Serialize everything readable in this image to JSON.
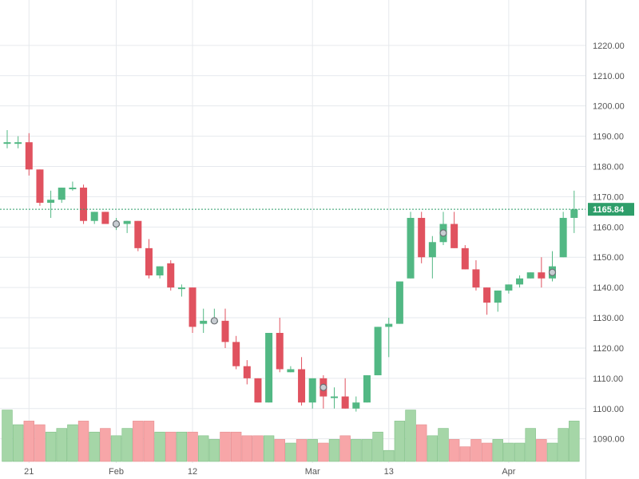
{
  "chart_data": {
    "type": "candlestick",
    "grid": true,
    "y_axis_position": "right",
    "ylim": [
      1082,
      1235
    ],
    "y_ticks": [
      "1090.00",
      "1100.00",
      "1110.00",
      "1120.00",
      "1130.00",
      "1140.00",
      "1150.00",
      "1160.00",
      "1170.00",
      "1180.00",
      "1190.00",
      "1200.00",
      "1210.00",
      "1220.00"
    ],
    "x_ticks": [
      {
        "label": "21",
        "index": 2
      },
      {
        "label": "Feb",
        "index": 10
      },
      {
        "label": "12",
        "index": 17
      },
      {
        "label": "Mar",
        "index": 28
      },
      {
        "label": "13",
        "index": 35
      },
      {
        "label": "Apr",
        "index": 46
      }
    ],
    "last_price": "1165.84",
    "last_price_value": 1165.84,
    "colors": {
      "up": "#52b884",
      "down": "#e0525f",
      "volume_up": "#a5d6a7",
      "volume_down": "#f7a6a8",
      "grid": "#e6e9ed",
      "axis_text": "#555555",
      "price_line": "#2e9e6a",
      "price_tag": "#2e9e6a"
    },
    "candles": [
      {
        "o": 1188,
        "h": 1192,
        "l": 1186,
        "c": 1188,
        "v": 14
      },
      {
        "o": 1188,
        "h": 1190,
        "l": 1186,
        "c": 1188,
        "v": 10
      },
      {
        "o": 1188,
        "h": 1191,
        "l": 1177,
        "c": 1179,
        "v": 11
      },
      {
        "o": 1179,
        "h": 1179,
        "l": 1167,
        "c": 1168,
        "v": 10
      },
      {
        "o": 1168,
        "h": 1172,
        "l": 1163,
        "c": 1169,
        "v": 8
      },
      {
        "o": 1169,
        "h": 1173,
        "l": 1168,
        "c": 1173,
        "v": 9
      },
      {
        "o": 1173,
        "h": 1175,
        "l": 1172,
        "c": 1173,
        "v": 10
      },
      {
        "o": 1173,
        "h": 1174,
        "l": 1161,
        "c": 1162,
        "v": 11
      },
      {
        "o": 1162,
        "h": 1165,
        "l": 1161,
        "c": 1165,
        "v": 8
      },
      {
        "o": 1165,
        "h": 1165,
        "l": 1161,
        "c": 1161,
        "v": 9
      },
      {
        "o": 1161,
        "h": 1163,
        "l": 1159,
        "c": 1161,
        "v": 7,
        "event": true
      },
      {
        "o": 1161,
        "h": 1162,
        "l": 1158,
        "c": 1162,
        "v": 9
      },
      {
        "o": 1162,
        "h": 1162,
        "l": 1152,
        "c": 1153,
        "v": 11
      },
      {
        "o": 1153,
        "h": 1156,
        "l": 1143,
        "c": 1144,
        "v": 11
      },
      {
        "o": 1144,
        "h": 1147,
        "l": 1143,
        "c": 1147,
        "v": 8
      },
      {
        "o": 1148,
        "h": 1149,
        "l": 1139,
        "c": 1140,
        "v": 8
      },
      {
        "o": 1140,
        "h": 1141,
        "l": 1137,
        "c": 1140,
        "v": 8
      },
      {
        "o": 1140,
        "h": 1140,
        "l": 1125,
        "c": 1127,
        "v": 8
      },
      {
        "o": 1128,
        "h": 1133,
        "l": 1125,
        "c": 1129,
        "v": 7
      },
      {
        "o": 1129,
        "h": 1133,
        "l": 1128,
        "c": 1129,
        "v": 6,
        "event": true
      },
      {
        "o": 1129,
        "h": 1133,
        "l": 1120,
        "c": 1122,
        "v": 8
      },
      {
        "o": 1122,
        "h": 1124,
        "l": 1113,
        "c": 1114,
        "v": 8
      },
      {
        "o": 1114,
        "h": 1116,
        "l": 1108,
        "c": 1110,
        "v": 7
      },
      {
        "o": 1110,
        "h": 1110,
        "l": 1102,
        "c": 1102,
        "v": 7
      },
      {
        "o": 1102,
        "h": 1125,
        "l": 1102,
        "c": 1125,
        "v": 7
      },
      {
        "o": 1125,
        "h": 1130,
        "l": 1112,
        "c": 1113,
        "v": 6
      },
      {
        "o": 1112,
        "h": 1114,
        "l": 1112,
        "c": 1113,
        "v": 5
      },
      {
        "o": 1113,
        "h": 1117,
        "l": 1101,
        "c": 1102,
        "v": 6
      },
      {
        "o": 1102,
        "h": 1110,
        "l": 1100,
        "c": 1110,
        "v": 6
      },
      {
        "o": 1110,
        "h": 1111,
        "l": 1100,
        "c": 1104,
        "v": 5,
        "event": true
      },
      {
        "o": 1104,
        "h": 1107,
        "l": 1100,
        "c": 1104,
        "v": 6
      },
      {
        "o": 1104,
        "h": 1110,
        "l": 1100,
        "c": 1100,
        "v": 7
      },
      {
        "o": 1100,
        "h": 1104,
        "l": 1099,
        "c": 1102,
        "v": 6
      },
      {
        "o": 1102,
        "h": 1111,
        "l": 1102,
        "c": 1111,
        "v": 6
      },
      {
        "o": 1111,
        "h": 1127,
        "l": 1111,
        "c": 1127,
        "v": 8
      },
      {
        "o": 1127,
        "h": 1130,
        "l": 1117,
        "c": 1128,
        "v": 3
      },
      {
        "o": 1128,
        "h": 1142,
        "l": 1128,
        "c": 1142,
        "v": 11
      },
      {
        "o": 1143,
        "h": 1165,
        "l": 1143,
        "c": 1163,
        "v": 14
      },
      {
        "o": 1163,
        "h": 1165,
        "l": 1148,
        "c": 1150,
        "v": 10
      },
      {
        "o": 1150,
        "h": 1157,
        "l": 1143,
        "c": 1155,
        "v": 7
      },
      {
        "o": 1155,
        "h": 1165,
        "l": 1154,
        "c": 1161,
        "v": 9,
        "event": true
      },
      {
        "o": 1161,
        "h": 1165,
        "l": 1153,
        "c": 1153,
        "v": 6
      },
      {
        "o": 1153,
        "h": 1154,
        "l": 1146,
        "c": 1146,
        "v": 4
      },
      {
        "o": 1146,
        "h": 1149,
        "l": 1139,
        "c": 1140,
        "v": 6
      },
      {
        "o": 1140,
        "h": 1140,
        "l": 1131,
        "c": 1135,
        "v": 5
      },
      {
        "o": 1135,
        "h": 1139,
        "l": 1132,
        "c": 1139,
        "v": 6
      },
      {
        "o": 1139,
        "h": 1141,
        "l": 1138,
        "c": 1141,
        "v": 5
      },
      {
        "o": 1141,
        "h": 1144,
        "l": 1140,
        "c": 1143,
        "v": 5
      },
      {
        "o": 1143,
        "h": 1145,
        "l": 1143,
        "c": 1145,
        "v": 9
      },
      {
        "o": 1145,
        "h": 1150,
        "l": 1140,
        "c": 1143,
        "v": 6
      },
      {
        "o": 1143,
        "h": 1152,
        "l": 1142,
        "c": 1147,
        "v": 5,
        "event": true
      },
      {
        "o": 1150,
        "h": 1165,
        "l": 1150,
        "c": 1163,
        "v": 9
      },
      {
        "o": 1163,
        "h": 1172,
        "l": 1158,
        "c": 1165.84,
        "v": 11
      }
    ]
  }
}
